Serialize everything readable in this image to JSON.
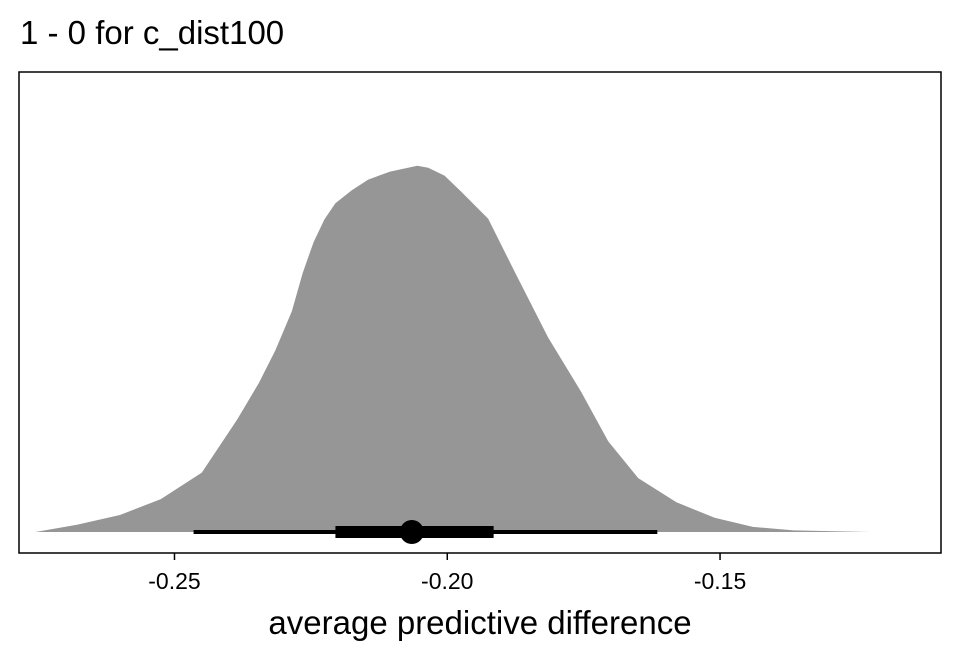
{
  "chart_data": {
    "type": "area",
    "title": "1 - 0 for c_dist100",
    "xlabel": "average predictive difference",
    "ylabel": "",
    "xlim": [
      -0.2785,
      -0.1095
    ],
    "x_ticks": [
      -0.25,
      -0.2,
      -0.15
    ],
    "x_tick_labels": [
      "-0.25",
      "-0.20",
      "-0.15"
    ],
    "grid": false,
    "legend": "none",
    "density": {
      "x": [
        -0.2755,
        -0.268,
        -0.26,
        -0.2525,
        -0.245,
        -0.2385,
        -0.2345,
        -0.2315,
        -0.2285,
        -0.2265,
        -0.2245,
        -0.2225,
        -0.2205,
        -0.2175,
        -0.2145,
        -0.2105,
        -0.2055,
        -0.2035,
        -0.2005,
        -0.1975,
        -0.1925,
        -0.1875,
        -0.1815,
        -0.1755,
        -0.1705,
        -0.165,
        -0.158,
        -0.151,
        -0.144,
        -0.1365,
        -0.1225
      ],
      "y": [
        0.0,
        0.018,
        0.043,
        0.083,
        0.15,
        0.284,
        0.377,
        0.459,
        0.557,
        0.654,
        0.732,
        0.79,
        0.83,
        0.863,
        0.89,
        0.91,
        0.925,
        0.92,
        0.9,
        0.86,
        0.791,
        0.653,
        0.491,
        0.355,
        0.229,
        0.136,
        0.075,
        0.036,
        0.013,
        0.004,
        0.0
      ]
    },
    "point_estimate": -0.2065,
    "intervals": [
      {
        "name": "outer",
        "lower": -0.2465,
        "upper": -0.1615
      },
      {
        "name": "inner",
        "lower": -0.2205,
        "upper": -0.1915
      }
    ],
    "colors": {
      "density_fill": "#969696",
      "interval": "#000000",
      "panel_border": "#000000",
      "background": "#ffffff"
    }
  }
}
